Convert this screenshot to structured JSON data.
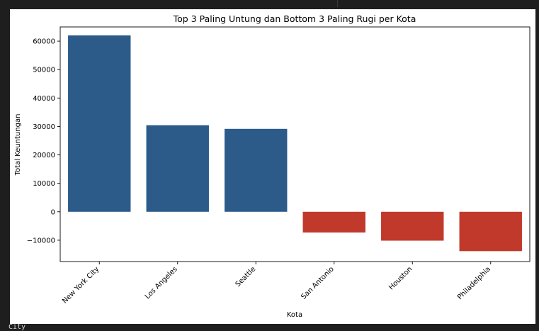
{
  "output_cell": {
    "trailing_text": "City"
  },
  "chart_data": {
    "type": "bar",
    "title": "Top 3 Paling Untung dan Bottom 3 Paling Rugi per Kota",
    "xlabel": "Kota",
    "ylabel": "Total Keuntungan",
    "categories": [
      "New York City",
      "Los Angeles",
      "Seattle",
      "San Antonio",
      "Houston",
      "Philadelphia"
    ],
    "values": [
      62037,
      30441,
      29157,
      -7299,
      -10154,
      -13838
    ],
    "bar_colors": [
      "#2c5b8a",
      "#2c5b8a",
      "#2c5b8a",
      "#c0392b",
      "#c0392b",
      "#c0392b"
    ],
    "ylim": [
      -17500,
      65000
    ],
    "yticks": [
      -10000,
      0,
      10000,
      20000,
      30000,
      40000,
      50000,
      60000
    ],
    "ytick_labels": [
      "−10000",
      "0",
      "10000",
      "20000",
      "30000",
      "40000",
      "50000",
      "60000"
    ],
    "grid": false,
    "legend": "none"
  }
}
